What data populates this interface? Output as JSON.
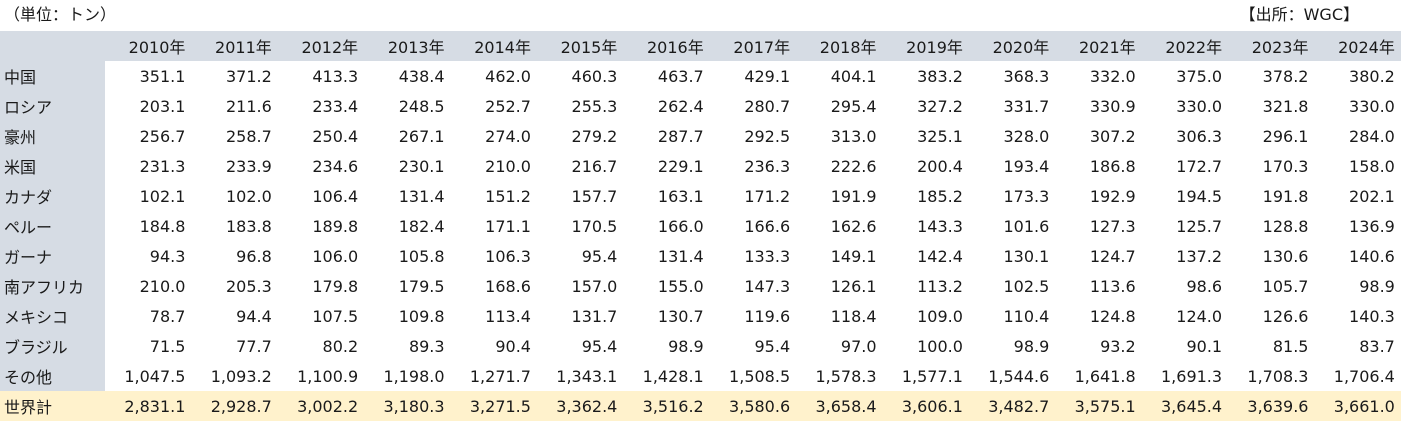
{
  "unit_label": "（単位：トン）",
  "source_label": "【出所：WGC】",
  "years": [
    "2010年",
    "2011年",
    "2012年",
    "2013年",
    "2014年",
    "2015年",
    "2016年",
    "2017年",
    "2018年",
    "2019年",
    "2020年",
    "2021年",
    "2022年",
    "2023年",
    "2024年"
  ],
  "rows": [
    {
      "label": "中国",
      "values": [
        "351.1",
        "371.2",
        "413.3",
        "438.4",
        "462.0",
        "460.3",
        "463.7",
        "429.1",
        "404.1",
        "383.2",
        "368.3",
        "332.0",
        "375.0",
        "378.2",
        "380.2"
      ]
    },
    {
      "label": "ロシア",
      "values": [
        "203.1",
        "211.6",
        "233.4",
        "248.5",
        "252.7",
        "255.3",
        "262.4",
        "280.7",
        "295.4",
        "327.2",
        "331.7",
        "330.9",
        "330.0",
        "321.8",
        "330.0"
      ]
    },
    {
      "label": "豪州",
      "values": [
        "256.7",
        "258.7",
        "250.4",
        "267.1",
        "274.0",
        "279.2",
        "287.7",
        "292.5",
        "313.0",
        "325.1",
        "328.0",
        "307.2",
        "306.3",
        "296.1",
        "284.0"
      ]
    },
    {
      "label": "米国",
      "values": [
        "231.3",
        "233.9",
        "234.6",
        "230.1",
        "210.0",
        "216.7",
        "229.1",
        "236.3",
        "222.6",
        "200.4",
        "193.4",
        "186.8",
        "172.7",
        "170.3",
        "158.0"
      ]
    },
    {
      "label": "カナダ",
      "values": [
        "102.1",
        "102.0",
        "106.4",
        "131.4",
        "151.2",
        "157.7",
        "163.1",
        "171.2",
        "191.9",
        "185.2",
        "173.3",
        "192.9",
        "194.5",
        "191.8",
        "202.1"
      ]
    },
    {
      "label": "ペルー",
      "values": [
        "184.8",
        "183.8",
        "189.8",
        "182.4",
        "171.1",
        "170.5",
        "166.0",
        "166.6",
        "162.6",
        "143.3",
        "101.6",
        "127.3",
        "125.7",
        "128.8",
        "136.9"
      ]
    },
    {
      "label": "ガーナ",
      "values": [
        "94.3",
        "96.8",
        "106.0",
        "105.8",
        "106.3",
        "95.4",
        "131.4",
        "133.3",
        "149.1",
        "142.4",
        "130.1",
        "124.7",
        "137.2",
        "130.6",
        "140.6"
      ]
    },
    {
      "label": "南アフリカ",
      "values": [
        "210.0",
        "205.3",
        "179.8",
        "179.5",
        "168.6",
        "157.0",
        "155.0",
        "147.3",
        "126.1",
        "113.2",
        "102.5",
        "113.6",
        "98.6",
        "105.7",
        "98.9"
      ]
    },
    {
      "label": "メキシコ",
      "values": [
        "78.7",
        "94.4",
        "107.5",
        "109.8",
        "113.4",
        "131.7",
        "130.7",
        "119.6",
        "118.4",
        "109.0",
        "110.4",
        "124.8",
        "124.0",
        "126.6",
        "140.3"
      ]
    },
    {
      "label": "ブラジル",
      "values": [
        "71.5",
        "77.7",
        "80.2",
        "89.3",
        "90.4",
        "95.4",
        "98.9",
        "95.4",
        "97.0",
        "100.0",
        "98.9",
        "93.2",
        "90.1",
        "81.5",
        "83.7"
      ]
    },
    {
      "label": "その他",
      "values": [
        "1,047.5",
        "1,093.2",
        "1,100.9",
        "1,198.0",
        "1,271.7",
        "1,343.1",
        "1,428.1",
        "1,508.5",
        "1,578.3",
        "1,577.1",
        "1,544.6",
        "1,641.8",
        "1,691.3",
        "1,708.3",
        "1,706.4"
      ]
    }
  ],
  "total": {
    "label": "世界計",
    "values": [
      "2,831.1",
      "2,928.7",
      "3,002.2",
      "3,180.3",
      "3,271.5",
      "3,362.4",
      "3,516.2",
      "3,580.6",
      "3,658.4",
      "3,606.1",
      "3,482.7",
      "3,575.1",
      "3,645.4",
      "3,639.6",
      "3,661.0"
    ]
  },
  "colors": {
    "header_bg": "#d6dce4",
    "total_bg": "#fff2cc"
  }
}
